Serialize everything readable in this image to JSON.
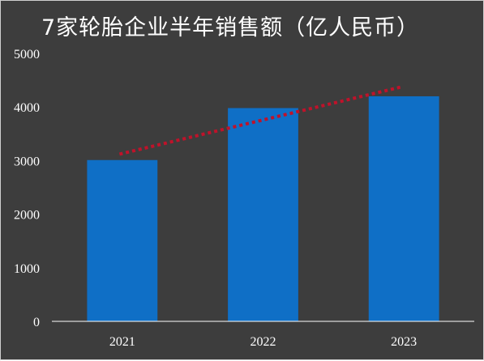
{
  "chart_data": {
    "type": "bar",
    "title": "7家轮胎企业半年销售额（亿人民币）",
    "categories": [
      "2021",
      "2022",
      "2023"
    ],
    "values": [
      3010,
      3980,
      4200
    ],
    "trendline": {
      "style": "dotted",
      "start": 3120,
      "end": 4380
    },
    "ylim": [
      0,
      5000
    ],
    "yticks": [
      0,
      1000,
      2000,
      3000,
      4000,
      5000
    ],
    "xlabel": "",
    "ylabel": "",
    "grid": false,
    "colors": {
      "background": "#3d3d3d",
      "bar": "#0f6fc6",
      "trendline": "#c0122a",
      "text": "#ffffff",
      "axis": "#ffffff"
    }
  }
}
